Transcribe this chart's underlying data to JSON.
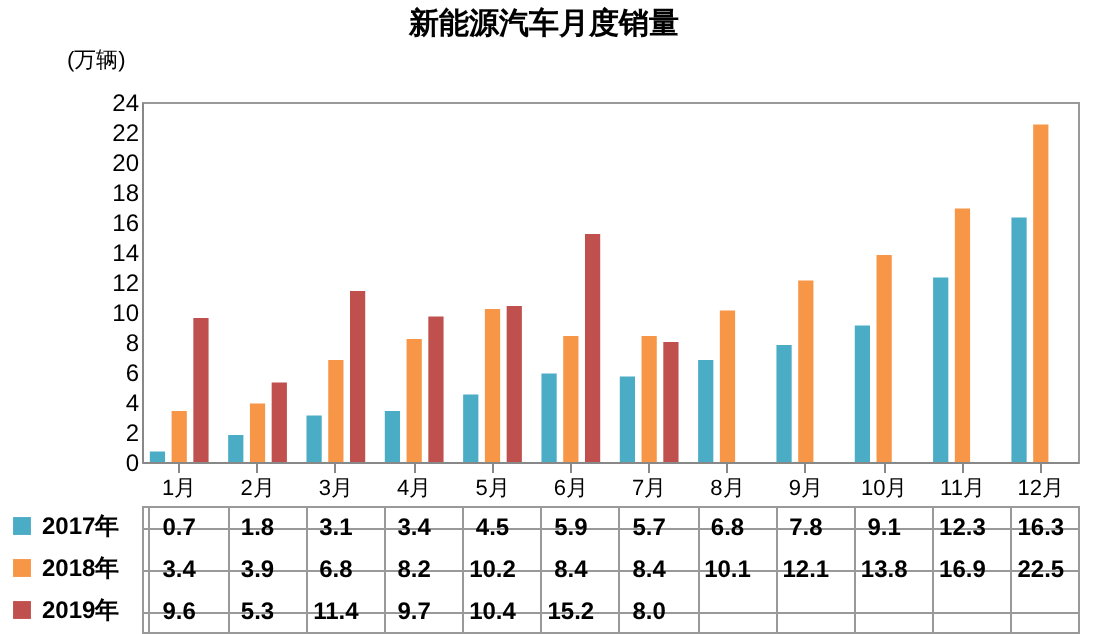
{
  "chart_data": {
    "type": "bar",
    "title": "新能源汽车月度销量",
    "ylabel": "(万辆)",
    "categories": [
      "1月",
      "2月",
      "3月",
      "4月",
      "5月",
      "6月",
      "7月",
      "8月",
      "9月",
      "10月",
      "11月",
      "12月"
    ],
    "series": [
      {
        "name": "2017年",
        "color": "#4bacc6",
        "values": [
          0.7,
          1.8,
          3.1,
          3.4,
          4.5,
          5.9,
          5.7,
          6.8,
          7.8,
          9.1,
          12.3,
          16.3
        ]
      },
      {
        "name": "2018年",
        "color": "#f79646",
        "values": [
          3.4,
          3.9,
          6.8,
          8.2,
          10.2,
          8.4,
          8.4,
          10.1,
          12.1,
          13.8,
          16.9,
          22.5
        ]
      },
      {
        "name": "2019年",
        "color": "#c0504d",
        "values": [
          9.6,
          5.3,
          11.4,
          9.7,
          10.4,
          15.2,
          8.0,
          null,
          null,
          null,
          null,
          null
        ],
        "value_labels": [
          "9.6",
          "5.3",
          "11.4",
          "9.7",
          "10.4",
          "15.2",
          "8.0",
          null,
          null,
          null,
          null,
          null
        ]
      }
    ],
    "ylim": [
      0,
      24
    ],
    "yticks": [
      0,
      2,
      4,
      6,
      8,
      10,
      12,
      14,
      16,
      18,
      20,
      22,
      24
    ],
    "data_labels": true,
    "legend": "bottom left"
  }
}
